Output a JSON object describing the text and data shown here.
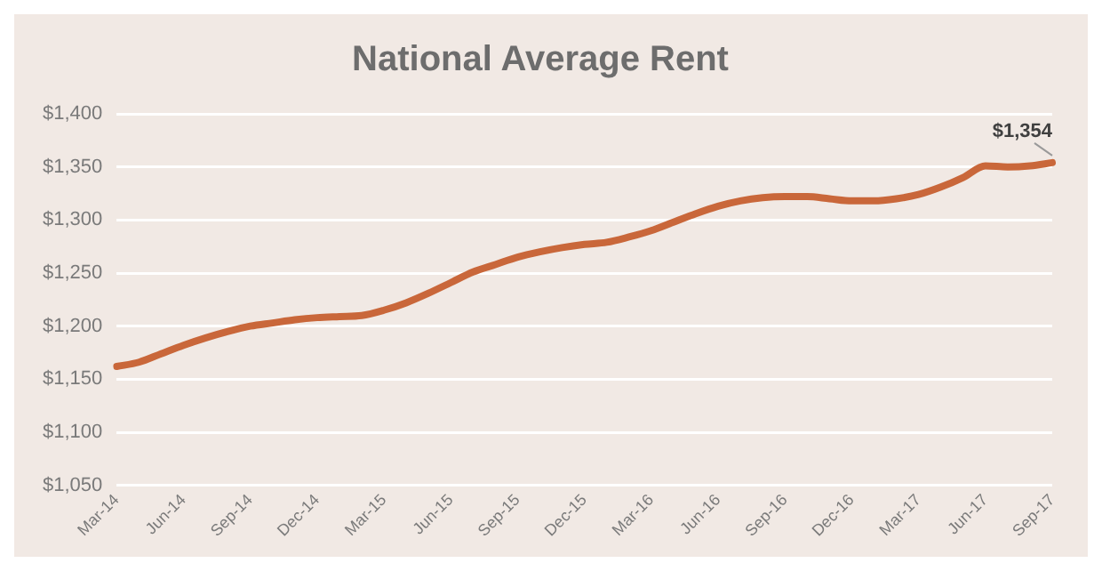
{
  "chart_data": {
    "type": "line",
    "title": "National Average Rent",
    "categories": [
      "Mar-14",
      null,
      null,
      "Jun-14",
      null,
      null,
      "Sep-14",
      null,
      null,
      "Dec-14",
      null,
      null,
      "Mar-15",
      null,
      null,
      "Jun-15",
      null,
      null,
      "Sep-15",
      null,
      null,
      "Dec-15",
      null,
      null,
      "Mar-16",
      null,
      null,
      "Jun-16",
      null,
      null,
      "Sep-16",
      null,
      null,
      "Dec-16",
      null,
      null,
      "Mar-17",
      null,
      null,
      "Jun-17",
      null,
      null,
      "Sep-17"
    ],
    "series": [
      {
        "color": "#c9673a",
        "values": [
          1162,
          1166,
          1174,
          1182,
          1189,
          1195,
          1200,
          1203,
          1206,
          1208,
          1209,
          1210,
          1215,
          1222,
          1231,
          1241,
          1251,
          1258,
          1265,
          1270,
          1274,
          1277,
          1279,
          1284,
          1290,
          1298,
          1306,
          1313,
          1318,
          1321,
          1322,
          1322,
          1320,
          1318,
          1318,
          1320,
          1324,
          1331,
          1340,
          1351,
          1350,
          1351,
          1354
        ]
      }
    ],
    "ylim": [
      1050,
      1400
    ],
    "yticks": [
      {
        "value": 1050,
        "label": "$1,050"
      },
      {
        "value": 1100,
        "label": "$1,100"
      },
      {
        "value": 1150,
        "label": "$1,150"
      },
      {
        "value": 1200,
        "label": "$1,200"
      },
      {
        "value": 1250,
        "label": "$1,250"
      },
      {
        "value": 1300,
        "label": "$1,300"
      },
      {
        "value": 1350,
        "label": "$1,350"
      },
      {
        "value": 1400,
        "label": "$1,400"
      }
    ],
    "grid": "y",
    "legend": false,
    "marker": "none",
    "line_style": "solid",
    "annotations": [
      {
        "text": "$1,354",
        "x": "Sep-17",
        "y": 1354
      }
    ]
  }
}
